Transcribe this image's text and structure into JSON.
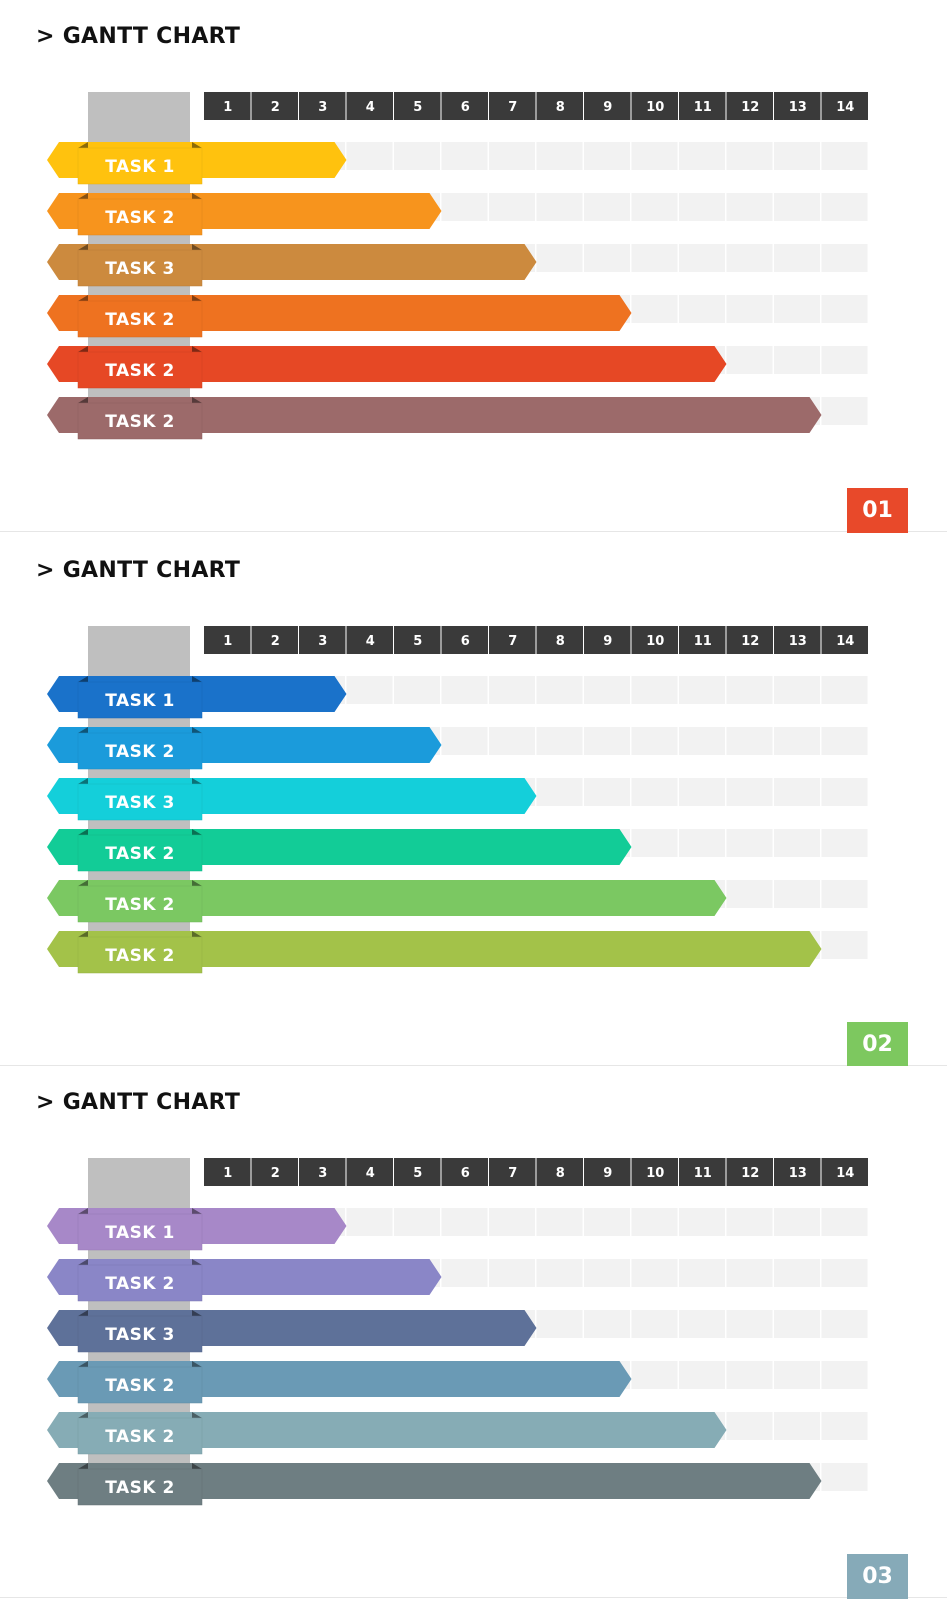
{
  "slides": [
    {
      "title": "> GANTT CHART",
      "number": "01",
      "number_color": "#E8492A",
      "chart_data": {
        "type": "bar",
        "categories": [
          "TASK 1",
          "TASK 2",
          "TASK 3",
          "TASK 2",
          "TASK 2",
          "TASK 2"
        ],
        "x": [
          1,
          2,
          3,
          4,
          5,
          6,
          7,
          8,
          9,
          10,
          11,
          12,
          13,
          14
        ],
        "xlim": [
          0,
          14
        ],
        "values": [
          3,
          5,
          7,
          9,
          11,
          13
        ],
        "colors": [
          "#FFC20E",
          "#F7941D",
          "#CC8A3E",
          "#EE7220",
          "#E64825",
          "#9C6A6A"
        ]
      }
    },
    {
      "title": "> GANTT CHART",
      "number": "02",
      "number_color": "#7DC85F",
      "chart_data": {
        "type": "bar",
        "categories": [
          "TASK 1",
          "TASK 2",
          "TASK 3",
          "TASK 2",
          "TASK 2",
          "TASK 2"
        ],
        "x": [
          1,
          2,
          3,
          4,
          5,
          6,
          7,
          8,
          9,
          10,
          11,
          12,
          13,
          14
        ],
        "xlim": [
          0,
          14
        ],
        "values": [
          3,
          5,
          7,
          9,
          11,
          13
        ],
        "colors": [
          "#1A72CA",
          "#1B9BDB",
          "#14CFDA",
          "#12CC97",
          "#7BC862",
          "#A3C249"
        ]
      }
    },
    {
      "title": "> GANTT CHART",
      "number": "03",
      "number_color": "#86AAB8",
      "chart_data": {
        "type": "bar",
        "categories": [
          "TASK 1",
          "TASK 2",
          "TASK 3",
          "TASK 2",
          "TASK 2",
          "TASK 2"
        ],
        "x": [
          1,
          2,
          3,
          4,
          5,
          6,
          7,
          8,
          9,
          10,
          11,
          12,
          13,
          14
        ],
        "xlim": [
          0,
          14
        ],
        "values": [
          3,
          5,
          7,
          9,
          11,
          13
        ],
        "colors": [
          "#A788C8",
          "#8A86C7",
          "#5E7199",
          "#6A9AB5",
          "#86ACB5",
          "#6E7E82"
        ]
      }
    }
  ]
}
